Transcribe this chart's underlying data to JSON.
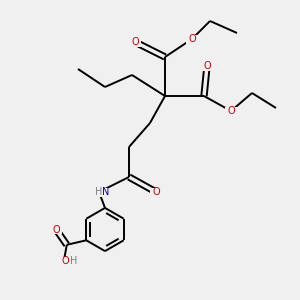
{
  "background_color": "#f0f0f0",
  "bond_color": "#000000",
  "O_color": "#cc0000",
  "N_color": "#0000cc",
  "H_color": "#808080",
  "figsize": [
    3.0,
    3.0
  ],
  "dpi": 100,
  "xlim": [
    0,
    10
  ],
  "ylim": [
    0,
    10
  ]
}
